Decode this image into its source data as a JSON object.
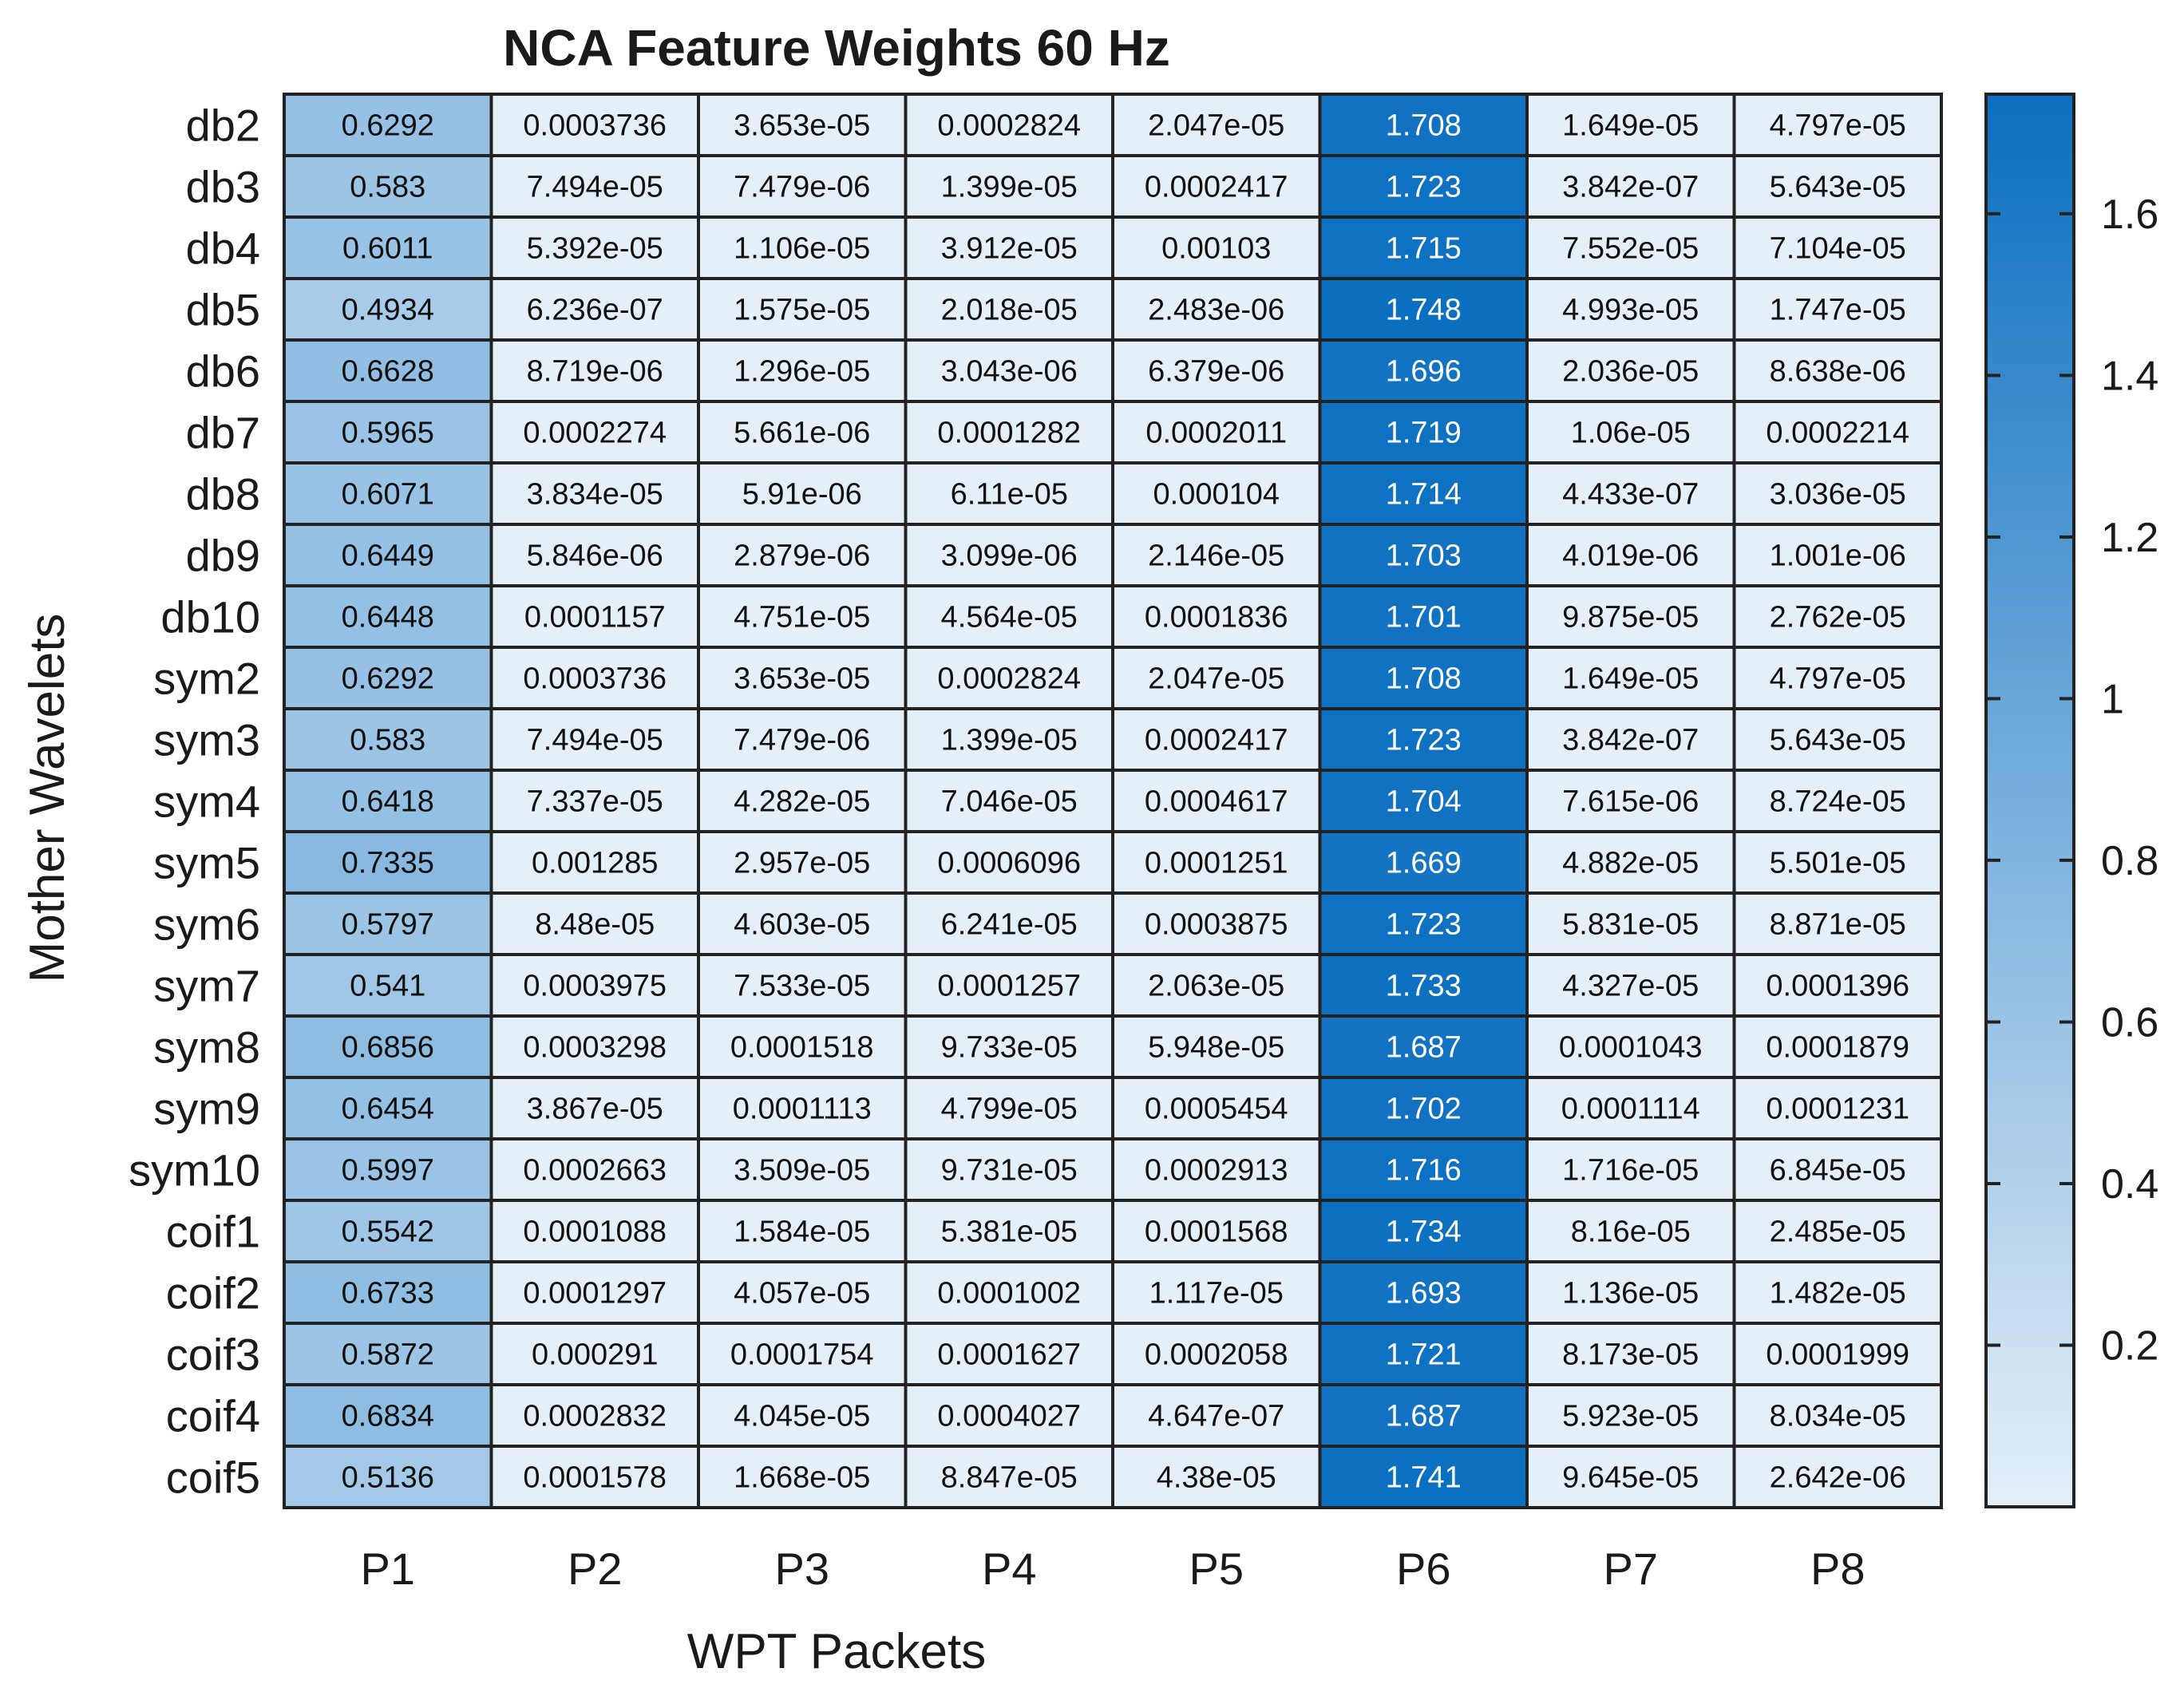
{
  "chart_data": {
    "type": "heatmap",
    "title": "NCA Feature Weights 60 Hz",
    "xlabel": "WPT Packets",
    "ylabel": "Mother Wavelets",
    "columns": [
      "P1",
      "P2",
      "P3",
      "P4",
      "P5",
      "P6",
      "P7",
      "P8"
    ],
    "rows": [
      "db2",
      "db3",
      "db4",
      "db5",
      "db6",
      "db7",
      "db8",
      "db9",
      "db10",
      "sym2",
      "sym3",
      "sym4",
      "sym5",
      "sym6",
      "sym7",
      "sym8",
      "sym9",
      "sym10",
      "coif1",
      "coif2",
      "coif3",
      "coif4",
      "coif5"
    ],
    "cells": [
      [
        "0.6292",
        "0.0003736",
        "3.653e-05",
        "0.0002824",
        "2.047e-05",
        "1.708",
        "1.649e-05",
        "4.797e-05"
      ],
      [
        "0.583",
        "7.494e-05",
        "7.479e-06",
        "1.399e-05",
        "0.0002417",
        "1.723",
        "3.842e-07",
        "5.643e-05"
      ],
      [
        "0.6011",
        "5.392e-05",
        "1.106e-05",
        "3.912e-05",
        "0.00103",
        "1.715",
        "7.552e-05",
        "7.104e-05"
      ],
      [
        "0.4934",
        "6.236e-07",
        "1.575e-05",
        "2.018e-05",
        "2.483e-06",
        "1.748",
        "4.993e-05",
        "1.747e-05"
      ],
      [
        "0.6628",
        "8.719e-06",
        "1.296e-05",
        "3.043e-06",
        "6.379e-06",
        "1.696",
        "2.036e-05",
        "8.638e-06"
      ],
      [
        "0.5965",
        "0.0002274",
        "5.661e-06",
        "0.0001282",
        "0.0002011",
        "1.719",
        "1.06e-05",
        "0.0002214"
      ],
      [
        "0.6071",
        "3.834e-05",
        "5.91e-06",
        "6.11e-05",
        "0.000104",
        "1.714",
        "4.433e-07",
        "3.036e-05"
      ],
      [
        "0.6449",
        "5.846e-06",
        "2.879e-06",
        "3.099e-06",
        "2.146e-05",
        "1.703",
        "4.019e-06",
        "1.001e-06"
      ],
      [
        "0.6448",
        "0.0001157",
        "4.751e-05",
        "4.564e-05",
        "0.0001836",
        "1.701",
        "9.875e-05",
        "2.762e-05"
      ],
      [
        "0.6292",
        "0.0003736",
        "3.653e-05",
        "0.0002824",
        "2.047e-05",
        "1.708",
        "1.649e-05",
        "4.797e-05"
      ],
      [
        "0.583",
        "7.494e-05",
        "7.479e-06",
        "1.399e-05",
        "0.0002417",
        "1.723",
        "3.842e-07",
        "5.643e-05"
      ],
      [
        "0.6418",
        "7.337e-05",
        "4.282e-05",
        "7.046e-05",
        "0.0004617",
        "1.704",
        "7.615e-06",
        "8.724e-05"
      ],
      [
        "0.7335",
        "0.001285",
        "2.957e-05",
        "0.0006096",
        "0.0001251",
        "1.669",
        "4.882e-05",
        "5.501e-05"
      ],
      [
        "0.5797",
        "8.48e-05",
        "4.603e-05",
        "6.241e-05",
        "0.0003875",
        "1.723",
        "5.831e-05",
        "8.871e-05"
      ],
      [
        "0.541",
        "0.0003975",
        "7.533e-05",
        "0.0001257",
        "2.063e-05",
        "1.733",
        "4.327e-05",
        "0.0001396"
      ],
      [
        "0.6856",
        "0.0003298",
        "0.0001518",
        "9.733e-05",
        "5.948e-05",
        "1.687",
        "0.0001043",
        "0.0001879"
      ],
      [
        "0.6454",
        "3.867e-05",
        "0.0001113",
        "4.799e-05",
        "0.0005454",
        "1.702",
        "0.0001114",
        "0.0001231"
      ],
      [
        "0.5997",
        "0.0002663",
        "3.509e-05",
        "9.731e-05",
        "0.0002913",
        "1.716",
        "1.716e-05",
        "6.845e-05"
      ],
      [
        "0.5542",
        "0.0001088",
        "1.584e-05",
        "5.381e-05",
        "0.0001568",
        "1.734",
        "8.16e-05",
        "2.485e-05"
      ],
      [
        "0.6733",
        "0.0001297",
        "4.057e-05",
        "0.0001002",
        "1.117e-05",
        "1.693",
        "1.136e-05",
        "1.482e-05"
      ],
      [
        "0.5872",
        "0.000291",
        "0.0001754",
        "0.0001627",
        "0.0002058",
        "1.721",
        "8.173e-05",
        "0.0001999"
      ],
      [
        "0.6834",
        "0.0002832",
        "4.045e-05",
        "0.0004027",
        "4.647e-07",
        "1.687",
        "5.923e-05",
        "8.034e-05"
      ],
      [
        "0.5136",
        "0.0001578",
        "1.668e-05",
        "8.847e-05",
        "4.38e-05",
        "1.741",
        "9.645e-05",
        "2.642e-06"
      ]
    ],
    "colorbar": {
      "range": [
        0,
        1.748
      ],
      "ticks": [
        0.2,
        0.4,
        0.6,
        0.8,
        1,
        1.2,
        1.4,
        1.6
      ],
      "tick_labels": [
        "0.2",
        "0.4",
        "0.6",
        "0.8",
        "1",
        "1.2",
        "1.4",
        "1.6"
      ],
      "color_low": "#e4eff8",
      "color_high": "#0b6fc0"
    },
    "grid": true,
    "colors": {
      "cell_border": "#222222",
      "text_dark": "#111111",
      "text_light": "#ffffff"
    }
  }
}
